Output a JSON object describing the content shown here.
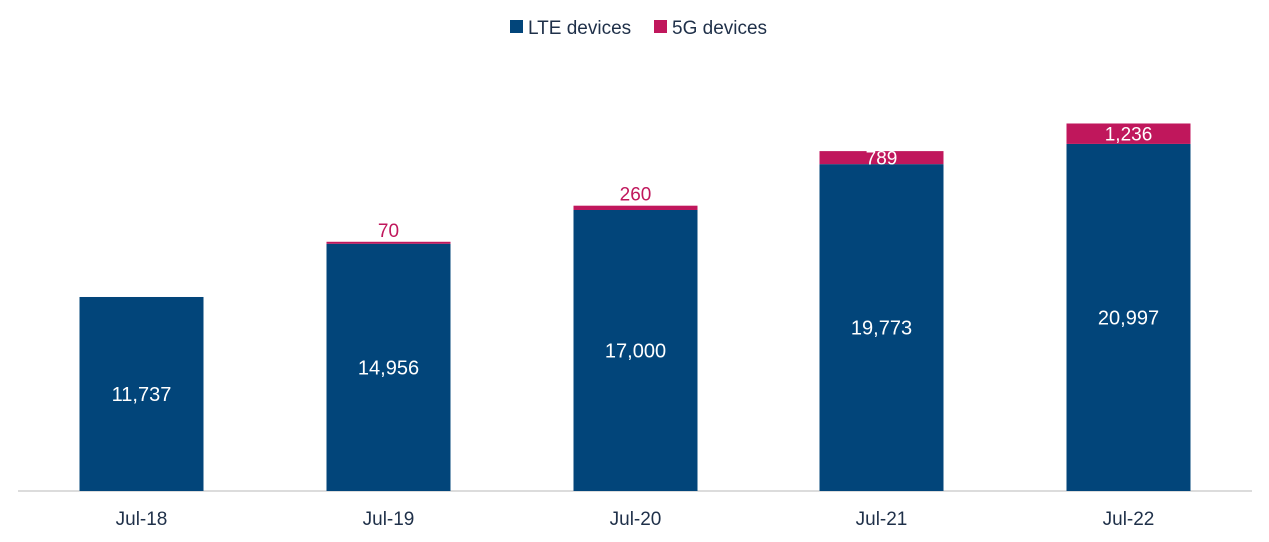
{
  "chart_data": {
    "type": "bar",
    "stacked": true,
    "title": "",
    "xlabel": "",
    "ylabel": "",
    "categories": [
      "Jul-18",
      "Jul-19",
      "Jul-20",
      "Jul-21",
      "Jul-22"
    ],
    "series": [
      {
        "name": "LTE devices",
        "color": "#02457a",
        "values": [
          11737,
          14956,
          17000,
          19773,
          20997
        ],
        "labels": [
          "11,737",
          "14,956",
          "17,000",
          "19,773",
          "20,997"
        ]
      },
      {
        "name": "5G devices",
        "color": "#c0175c",
        "values": [
          0,
          70,
          260,
          789,
          1236
        ],
        "labels": [
          "",
          "70",
          "260",
          "789",
          "1,236"
        ]
      }
    ],
    "ylim": [
      0,
      28000
    ],
    "grid": false,
    "legend_position": "top-center"
  }
}
